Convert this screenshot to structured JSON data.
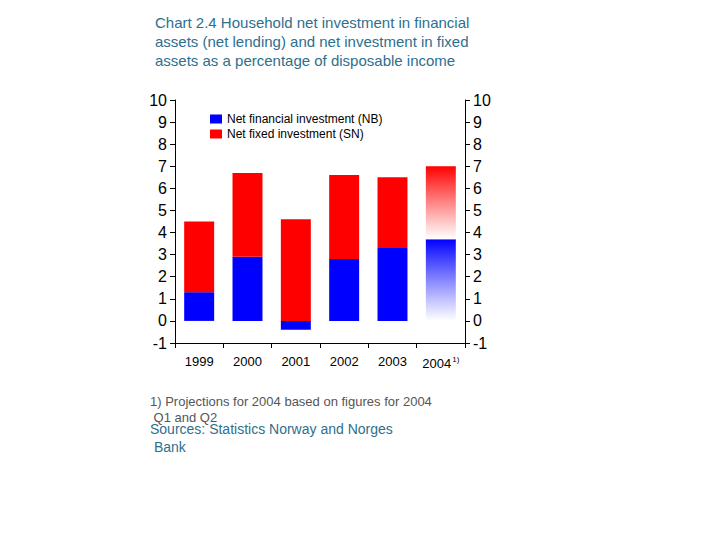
{
  "chart_data": {
    "type": "bar",
    "title": "Chart 2.4 Household net investment in financial assets (net lending) and net investment in fixed assets as a percentage of disposable income",
    "categories": [
      "1999",
      "2000",
      "2001",
      "2002",
      "2003",
      "2004 1)"
    ],
    "series": [
      {
        "name": "Net financial investment (NB)",
        "color": "#0000ff",
        "values": [
          1.3,
          2.9,
          -0.4,
          2.8,
          3.3,
          3.7
        ]
      },
      {
        "name": "Net fixed investment (SN)",
        "color": "#ff0000",
        "values": [
          3.2,
          3.8,
          4.6,
          3.8,
          3.2,
          3.3
        ]
      }
    ],
    "stacked": true,
    "ylim": [
      -1,
      10
    ],
    "yticks": [
      -1,
      0,
      1,
      2,
      3,
      4,
      5,
      6,
      7,
      8,
      9,
      10
    ],
    "y2lim": [
      -1,
      10
    ],
    "y2ticks": [
      -1,
      0,
      1,
      2,
      3,
      4,
      5,
      6,
      7,
      8,
      9,
      10
    ],
    "grid": false,
    "legend": "top-left",
    "footnote": "1) Projections for 2004 based on figures for 2004 Q1 and Q2",
    "source": "Sources: Statistics Norway and Norges Bank"
  }
}
